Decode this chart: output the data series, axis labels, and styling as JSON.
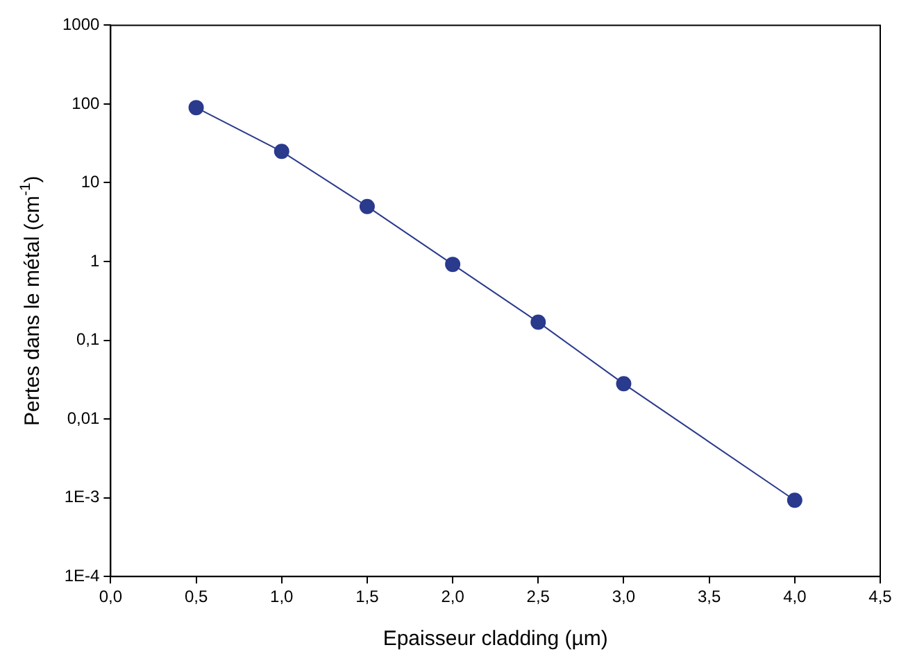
{
  "chart_data": {
    "type": "line",
    "xlabel": "Epaisseur cladding (µm)",
    "ylabel": "Pertes dans le métal (cm$^{-1}$)",
    "x": [
      0.5,
      1.0,
      1.5,
      2.0,
      2.5,
      3.0,
      4.0
    ],
    "series": [
      {
        "color": "#2a3a8c",
        "values": [
          90,
          25,
          5,
          0.92,
          0.17,
          0.028,
          0.00093
        ]
      }
    ],
    "xlim": [
      0,
      4.5
    ],
    "xticks": [
      {
        "value": 0,
        "label": "0,0"
      },
      {
        "value": 0.5,
        "label": "0,5"
      },
      {
        "value": 1,
        "label": "1,0"
      },
      {
        "value": 1.5,
        "label": "1,5"
      },
      {
        "value": 2,
        "label": "2,0"
      },
      {
        "value": 2.5,
        "label": "2,5"
      },
      {
        "value": 3,
        "label": "3,0"
      },
      {
        "value": 3.5,
        "label": "3,5"
      },
      {
        "value": 4,
        "label": "4,0"
      },
      {
        "value": 4.5,
        "label": "4,5"
      }
    ],
    "ylim": [
      0.0001,
      1000
    ],
    "yticks": [
      {
        "value": 0.0001,
        "label": "1E-4"
      },
      {
        "value": 0.001,
        "label": "1E-3"
      },
      {
        "value": 0.01,
        "label": "0,01"
      },
      {
        "value": 0.1,
        "label": "0,1"
      },
      1,
      10,
      100,
      1000
    ],
    "log": "y",
    "grid": false,
    "legend": false,
    "marker": "circle",
    "line_style": "solid"
  }
}
